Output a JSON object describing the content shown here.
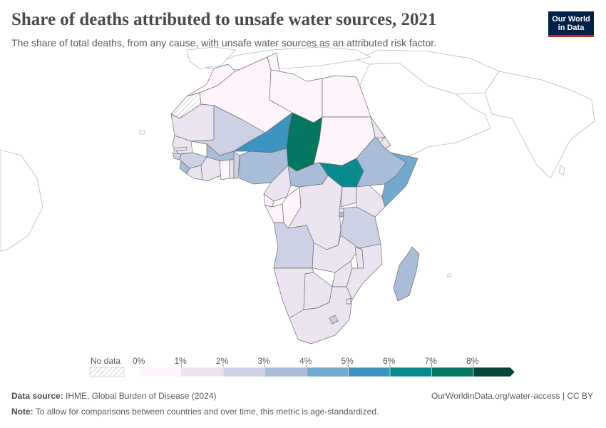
{
  "header": {
    "title": "Share of deaths attributed to unsafe water sources, 2021",
    "subtitle": "The share of total deaths, from any cause, with unsafe water sources as an attributed risk factor."
  },
  "logo": {
    "line1": "Our World",
    "line2": "in Data"
  },
  "legend": {
    "no_data_label": "No data",
    "ticks": [
      "0%",
      "1%",
      "2%",
      "3%",
      "4%",
      "5%",
      "6%",
      "7%",
      "8%"
    ],
    "bins": [
      {
        "from": 0,
        "to": 1,
        "color": "#fdf5fb"
      },
      {
        "from": 1,
        "to": 2,
        "color": "#ece5f1"
      },
      {
        "from": 2,
        "to": 3,
        "color": "#ccd1e5"
      },
      {
        "from": 3,
        "to": 4,
        "color": "#a9bcd9"
      },
      {
        "from": 4,
        "to": 5,
        "color": "#72a9cf"
      },
      {
        "from": 5,
        "to": 6,
        "color": "#3d94c1"
      },
      {
        "from": 6,
        "to": 7,
        "color": "#088a8e"
      },
      {
        "from": 7,
        "to": 8,
        "color": "#03775f"
      },
      {
        "from": 8,
        "to": 9,
        "color": "#014636"
      }
    ]
  },
  "chart_data": {
    "type": "choropleth",
    "region": "Africa",
    "unit": "% of deaths",
    "colors": {
      "ocean": "#ffffff",
      "no_data_fill": "#f2f2f2",
      "other_land": "#ffffff",
      "border": "#6d6d6d",
      "outside_border": "#b9b9b9"
    },
    "countries": [
      {
        "name": "Morocco",
        "value": 0.3
      },
      {
        "name": "Western Sahara",
        "value": null
      },
      {
        "name": "Algeria",
        "value": 0.3
      },
      {
        "name": "Tunisia",
        "value": 0.2
      },
      {
        "name": "Libya",
        "value": 0.3
      },
      {
        "name": "Egypt",
        "value": 0.3
      },
      {
        "name": "Mauritania",
        "value": 1.6
      },
      {
        "name": "Mali",
        "value": 2.6
      },
      {
        "name": "Niger",
        "value": 5.2
      },
      {
        "name": "Chad",
        "value": 7.5
      },
      {
        "name": "Sudan",
        "value": 0.8
      },
      {
        "name": "South Sudan",
        "value": 6.5
      },
      {
        "name": "Eritrea",
        "value": 1.8
      },
      {
        "name": "Ethiopia",
        "value": 3.3
      },
      {
        "name": "Djibouti",
        "value": 1.5
      },
      {
        "name": "Somalia",
        "value": 4.4
      },
      {
        "name": "Senegal",
        "value": 1.5
      },
      {
        "name": "Gambia",
        "value": 1.4
      },
      {
        "name": "Guinea-Bissau",
        "value": 2.2
      },
      {
        "name": "Guinea",
        "value": 2.2
      },
      {
        "name": "Sierra Leone",
        "value": 3.2
      },
      {
        "name": "Liberia",
        "value": 1.4
      },
      {
        "name": "Cote d'Ivoire",
        "value": 1.2
      },
      {
        "name": "Burkina Faso",
        "value": 3.1
      },
      {
        "name": "Ghana",
        "value": 0.9
      },
      {
        "name": "Togo",
        "value": 1.3
      },
      {
        "name": "Benin",
        "value": 2.6
      },
      {
        "name": "Nigeria",
        "value": 3.2
      },
      {
        "name": "Cameroon",
        "value": 1.4
      },
      {
        "name": "Central African Republic",
        "value": 3.4
      },
      {
        "name": "Equatorial Guinea",
        "value": 0.8
      },
      {
        "name": "Gabon",
        "value": 0.6
      },
      {
        "name": "Congo",
        "value": 0.9
      },
      {
        "name": "Democratic Republic of Congo",
        "value": 1.5
      },
      {
        "name": "Uganda",
        "value": 1.4
      },
      {
        "name": "Kenya",
        "value": 1.7
      },
      {
        "name": "Rwanda",
        "value": 1.3
      },
      {
        "name": "Burundi",
        "value": 3.1
      },
      {
        "name": "Tanzania",
        "value": 2.3
      },
      {
        "name": "Angola",
        "value": 2.4
      },
      {
        "name": "Zambia",
        "value": 1.3
      },
      {
        "name": "Malawi",
        "value": 1.2
      },
      {
        "name": "Mozambique",
        "value": 1.8
      },
      {
        "name": "Zimbabwe",
        "value": 1.1
      },
      {
        "name": "Namibia",
        "value": 1.2
      },
      {
        "name": "Botswana",
        "value": 1.3
      },
      {
        "name": "South Africa",
        "value": 1.2
      },
      {
        "name": "Lesotho",
        "value": 2.4
      },
      {
        "name": "Eswatini",
        "value": 1.6
      },
      {
        "name": "Madagascar",
        "value": 3.6
      }
    ]
  },
  "footer": {
    "source_label": "Data source:",
    "source_text": "IHME, Global Burden of Disease (2024)",
    "note_label": "Note:",
    "note_text": "To allow for comparisons between countries and over time, this metric is age-standardized.",
    "url_text": "OurWorldinData.org/water-access | CC BY"
  }
}
